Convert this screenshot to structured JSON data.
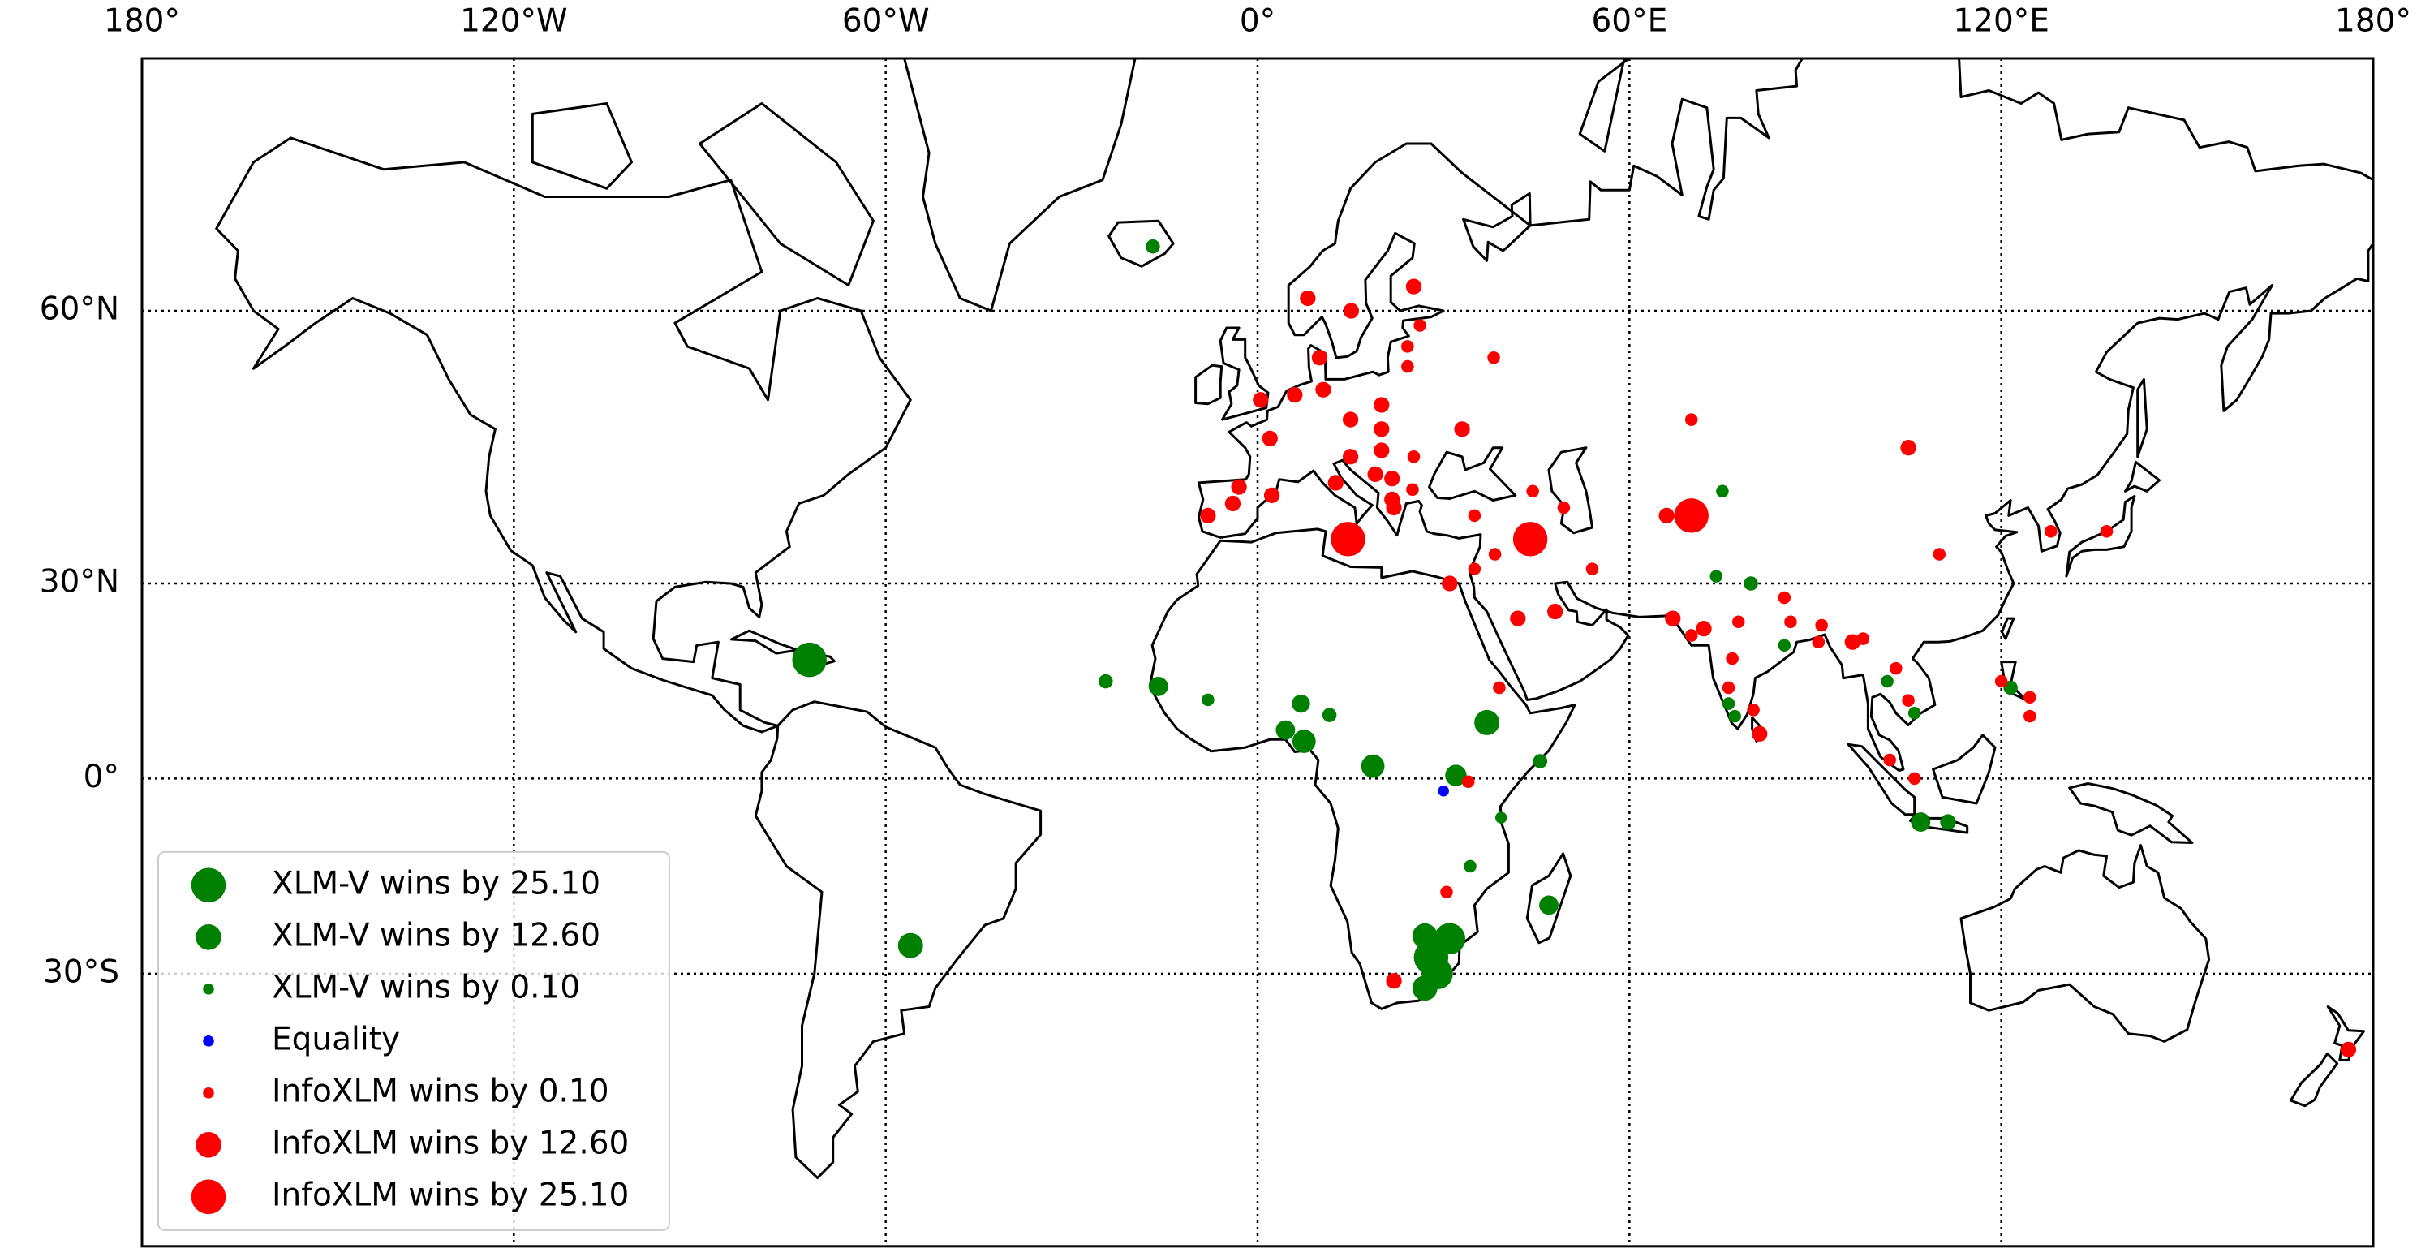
{
  "chart_data": {
    "type": "scatter",
    "projection": "mercator",
    "xlim": [
      -180,
      180
    ],
    "ylim": [
      -60,
      75
    ],
    "xticks": [
      {
        "value": -180,
        "label": "180°"
      },
      {
        "value": -120,
        "label": "120°W"
      },
      {
        "value": -60,
        "label": "60°W"
      },
      {
        "value": 0,
        "label": "0°"
      },
      {
        "value": 60,
        "label": "60°E"
      },
      {
        "value": 120,
        "label": "120°E"
      },
      {
        "value": 180,
        "label": "180°"
      }
    ],
    "yticks": [
      {
        "value": -30,
        "label": "30°S"
      },
      {
        "value": 0,
        "label": "0°"
      },
      {
        "value": 30,
        "label": "30°N"
      },
      {
        "value": 60,
        "label": "60°N"
      }
    ],
    "grid": true,
    "colors": {
      "positive": "#008000",
      "zero": "#0000ff",
      "negative": "#ff0000"
    },
    "legend": {
      "position": "lower left",
      "entries": [
        {
          "label": "XLM-V wins by 25.10",
          "value": 25.1,
          "color": "#008000"
        },
        {
          "label": "XLM-V wins by 12.60",
          "value": 12.6,
          "color": "#008000"
        },
        {
          "label": "XLM-V wins by 0.10",
          "value": 0.1,
          "color": "#008000"
        },
        {
          "label": "Equality",
          "value": 0,
          "color": "#0000ff"
        },
        {
          "label": "InfoXLM wins by 0.10",
          "value": -0.1,
          "color": "#ff0000"
        },
        {
          "label": "InfoXLM wins by 12.60",
          "value": -12.6,
          "color": "#ff0000"
        },
        {
          "label": "InfoXLM wins by 25.10",
          "value": -25.1,
          "color": "#ff0000"
        }
      ]
    },
    "x": [
      -16.9,
      8.1,
      15.1,
      25.2,
      26.2,
      24.2,
      24.2,
      38.1,
      10,
      0.5,
      6,
      10.6,
      15,
      20,
      20,
      33,
      2,
      15,
      20,
      25.2,
      19,
      21.7,
      12.6,
      -3,
      21.7,
      22,
      25,
      2.3,
      -4,
      -8,
      35,
      14.6,
      44.4,
      44,
      49.4,
      54,
      38.3,
      35,
      31,
      42,
      48,
      39,
      34,
      30.5,
      22,
      70,
      66,
      70,
      105,
      110,
      128,
      137,
      67,
      70,
      72,
      77.6,
      85,
      86,
      91,
      96,
      97.7,
      90.5,
      76.6,
      76,
      80,
      81,
      103,
      105,
      102,
      106,
      124.6,
      124.6,
      120,
      176,
      -72.3,
      -56,
      -24.5,
      -16,
      -8,
      7,
      11.6,
      4.5,
      7.5,
      18.6,
      32,
      37,
      45.6,
      39.3,
      34.3,
      47,
      27,
      31,
      28,
      29,
      27,
      75,
      74,
      79.6,
      85,
      76,
      101.6,
      107,
      111.4,
      121.5,
      106,
      77,
      30
    ],
    "y": [
      64.8,
      61,
      60,
      61.9,
      58.8,
      57,
      55.2,
      56,
      56,
      52,
      52.5,
      53,
      50,
      51.5,
      49,
      49,
      48,
      46,
      46.7,
      46,
      44,
      43.5,
      43,
      42.5,
      41,
      40,
      42.2,
      41.5,
      40.5,
      39,
      39,
      36,
      42,
      36,
      40,
      32,
      34,
      32,
      30,
      25,
      26,
      14.5,
      -0.5,
      -18,
      -31,
      39,
      39,
      50,
      47,
      34,
      37,
      37,
      25,
      22.5,
      23.5,
      24.5,
      28,
      24.5,
      24,
      21.5,
      22,
      21.5,
      19,
      14.5,
      11,
      7.2,
      17.5,
      12.5,
      3,
      0,
      13,
      10,
      15.5,
      -40,
      18.8,
      -26,
      15.5,
      14.7,
      12.6,
      12,
      10.2,
      7.8,
      6,
      2,
      0.5,
      9,
      2.8,
      -6.3,
      -14,
      -20,
      -24.6,
      -25,
      -27.7,
      -30,
      -32,
      42,
      31,
      30,
      21,
      12,
      15.5,
      -7,
      -7,
      14.5,
      10.5,
      10,
      -2
    ],
    "values": [
      2,
      -3,
      -3,
      -3,
      -1,
      -1,
      -1,
      -1,
      -3,
      -3,
      -3,
      -3,
      -3,
      -3,
      -3,
      -3,
      -3,
      -3,
      -3,
      -1,
      -3,
      -3,
      -3,
      -3,
      -3,
      -3,
      -1,
      -3,
      -3,
      -3,
      -1,
      -25,
      -1,
      -25,
      -1,
      -1,
      -1,
      -1,
      -3,
      -3,
      -3,
      -1,
      -1,
      -1,
      -3,
      -25,
      -3,
      -1,
      -3,
      -1,
      -1,
      -1,
      -3,
      -1,
      -3,
      -1,
      -1,
      -1,
      -1,
      -3,
      -1,
      -1,
      -1,
      -1,
      -1,
      -3,
      -1,
      -1,
      -1,
      -1,
      -1,
      -1,
      -1,
      -3,
      25,
      12,
      2,
      6,
      1,
      5,
      2,
      6,
      10,
      10,
      8,
      12,
      2,
      0.5,
      1,
      6,
      12,
      20,
      25,
      20,
      12,
      1,
      1,
      2,
      1,
      1,
      1,
      6,
      3,
      2,
      1,
      1,
      0
    ]
  }
}
